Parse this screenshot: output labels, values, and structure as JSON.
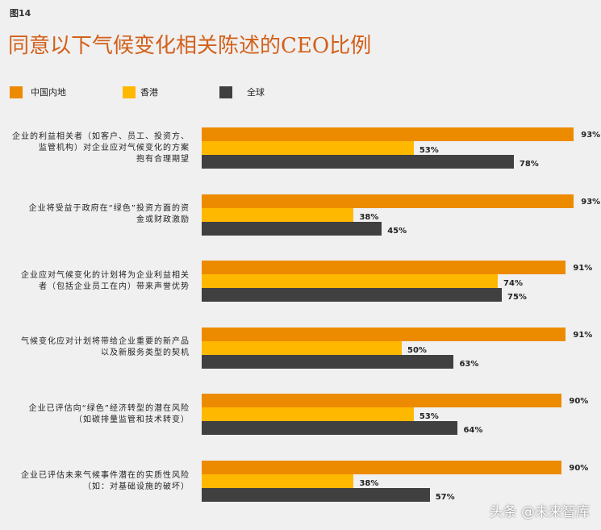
{
  "figure_label": "图14",
  "watermark": "头条 @未来智库",
  "chart_data": {
    "type": "bar",
    "orientation": "horizontal",
    "title": "同意以下气候变化相关陈述的CEO比例",
    "unit": "%",
    "legend_position": "top",
    "grid": false,
    "xlim": [
      0,
      100
    ],
    "categories": [
      [
        "企业的利益相关者（如客户、员工、投资方、",
        "监管机构）对企业应对气候变化的方案",
        "抱有合理期望"
      ],
      [
        "企业将受益于政府在“绿色”投资方面的资",
        "金或财政激励"
      ],
      [
        "企业应对气候变化的计划将为企业利益相关",
        "者（包括企业员工在内）带来声誉优势"
      ],
      [
        "气候变化应对计划将带给企业重要的新产品",
        "以及新服务类型的契机"
      ],
      [
        "企业已评估向“绿色”经济转型的潜在风险",
        "（如碳排量监管和技术转变）"
      ],
      [
        "企业已评估未来气候事件潜在的实质性风险",
        "（如：对基础设施的破坏）"
      ]
    ],
    "series": [
      {
        "name": "中国内地",
        "color": "#ec8b00",
        "values": [
          93,
          93,
          91,
          91,
          90,
          90
        ],
        "labels": [
          "93%",
          "93%",
          "91%",
          "91%",
          "90%",
          "90%"
        ]
      },
      {
        "name": "香港",
        "color": "#ffb800",
        "values": [
          53,
          38,
          74,
          50,
          53,
          38
        ],
        "labels": [
          "53%",
          "38%",
          "74%",
          "50%",
          "53%",
          "38%"
        ]
      },
      {
        "name": "全球",
        "color": "#404040",
        "values": [
          78,
          45,
          75,
          63,
          64,
          57
        ],
        "labels": [
          "78%",
          "45%",
          "75%",
          "63%",
          "64%",
          "57%"
        ]
      }
    ]
  }
}
